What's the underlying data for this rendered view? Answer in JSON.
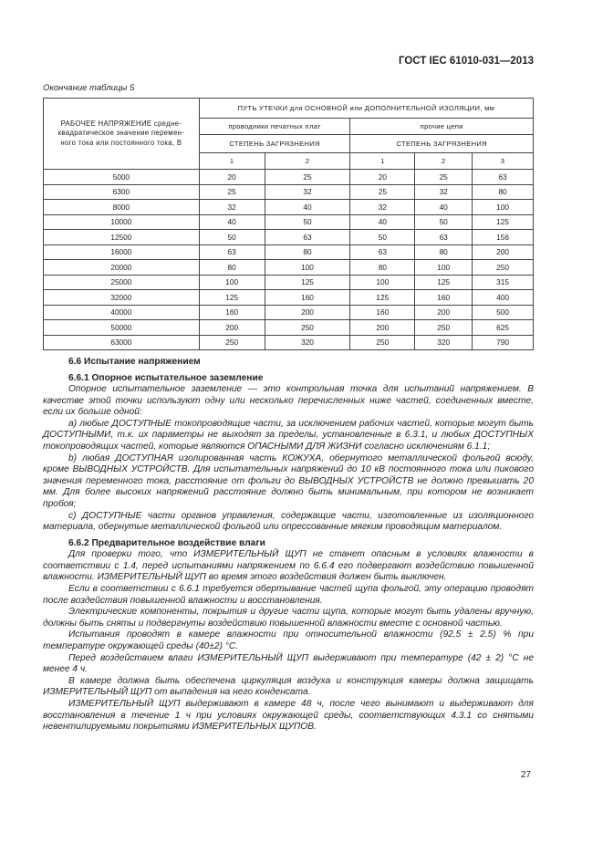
{
  "header": "ГОСТ IEC 61010-031—2013",
  "table_caption": "Окончание таблицы 5",
  "table": {
    "col0_header": "РАБОЧЕЕ НАПРЯЖЕНИЕ средне-квадратическое значение перемен-ного тока или постоянного тока, В",
    "group_header": "ПУТЬ УТЕЧКИ для ОСНОВНОЙ или ДОПОЛНИТЕЛЬНОЙ ИЗОЛЯЦИИ, мм",
    "sub1": "проводники печатных плат",
    "sub2": "прочие цепи",
    "pollution1": "СТЕПЕНЬ ЗАГРЯЗНЕНИЯ",
    "pollution2": "СТЕПЕНЬ ЗАГРЯЗНЕНИЯ",
    "degrees": [
      "1",
      "2",
      "1",
      "2",
      "3"
    ],
    "rows": [
      [
        "5000",
        "20",
        "25",
        "20",
        "25",
        "63"
      ],
      [
        "6300",
        "25",
        "32",
        "25",
        "32",
        "80"
      ],
      [
        "8000",
        "32",
        "40",
        "32",
        "40",
        "100"
      ],
      [
        "10000",
        "40",
        "50",
        "40",
        "50",
        "125"
      ],
      [
        "12500",
        "50",
        "63",
        "50",
        "63",
        "156"
      ],
      [
        "16000",
        "63",
        "80",
        "63",
        "80",
        "200"
      ],
      [
        "20000",
        "80",
        "100",
        "80",
        "100",
        "250"
      ],
      [
        "25000",
        "100",
        "125",
        "100",
        "125",
        "315"
      ],
      [
        "32000",
        "125",
        "160",
        "125",
        "160",
        "400"
      ],
      [
        "40000",
        "160",
        "200",
        "160",
        "200",
        "500"
      ],
      [
        "50000",
        "200",
        "250",
        "200",
        "250",
        "625"
      ],
      [
        "63000",
        "250",
        "320",
        "250",
        "320",
        "790"
      ]
    ]
  },
  "body": [
    {
      "t": "h",
      "text": "6.6 Испытание напряжением"
    },
    {
      "t": "h",
      "text": "6.6.1 Опорное испытательное заземление"
    },
    {
      "t": "p",
      "text": "Опорное испытательное заземление — это контрольная точка для испытаний напряжением. В качестве этой точки используют одну или несколько перечисленных ниже частей, соединенных вместе, если их больше одной:"
    },
    {
      "t": "p",
      "text": "a) любые ДОСТУПНЫЕ токопроводящие части, за исключением рабочих частей, которые могут быть ДОСТУПНЫМИ, т.к. их параметры не выходят за пределы, установленные в 6.3.1, и любых ДОСТУПНЫХ токопроводящих частей, которые являются ОПАСНЫМИ ДЛЯ ЖИЗНИ согласно исключениям 6.1.1;"
    },
    {
      "t": "p",
      "text": "b) любая ДОСТУПНАЯ изолированная часть КОЖУХА, обернутого металлической фольгой всюду, кроме ВЫВОДНЫХ УСТРОЙСТВ. Для испытательных напряжений до 10 кВ постоянного тока или пикового значения переменного тока, расстояние от фольги до ВЫВОДНЫХ УСТРОЙСТВ не должно превышать 20 мм. Для более высоких напряжений расстояние должно быть минимальным, при котором не возникает пробоя;"
    },
    {
      "t": "p",
      "text": "c) ДОСТУПНЫЕ части органов управления, содержащие части, изготовленные из изоляционного материала, обернутые металлической фольгой или опрессованные мягким проводящим материалом."
    },
    {
      "t": "h",
      "text": "6.6.2 Предварительное воздействие влаги"
    },
    {
      "t": "p",
      "text": "Для проверки того, что ИЗМЕРИТЕЛЬНЫЙ ЩУП не станет опасным в условиях влажности в соответствии с 1.4, перед испытаниями напряжением по 6.6.4 его подвергают воздействию повышенной влажности. ИЗМЕРИТЕЛЬНЫЙ ЩУП во время этого воздействия должен быть выключен."
    },
    {
      "t": "p",
      "text": "Если в соответствии с 6.6.1 требуется обертывание частей щупа фольгой, эту операцию проводят после воздействия повышенной влажности и восстановления."
    },
    {
      "t": "p",
      "text": "Электрические компоненты, покрытия и другие части щупа, которые могут быть удалены вручную, должны быть сняты и подвергнуты воздействию повышенной влажности вместе с основной частью."
    },
    {
      "t": "p",
      "text": "Испытания проводят в камере влажности при относительной влажности (92,5 ± 2,5) % при температуре окружающей среды (40±2) °C."
    },
    {
      "t": "p",
      "text": "Перед воздействием влаги ИЗМЕРИТЕЛЬНЫЙ ЩУП выдерживают при температуре (42 ± 2) °C не менее 4 ч."
    },
    {
      "t": "p",
      "text": "В камере должна быть обеспечена циркуляция воздуха и конструкция камеры должна защищать ИЗМЕРИТЕЛЬНЫЙ ЩУП от выпадения на него конденсата."
    },
    {
      "t": "p",
      "text": "ИЗМЕРИТЕЛЬНЫЙ ЩУП выдерживают в камере 48 ч, после чего вынимают и выдерживают для восстановления в течение 1 ч при условиях окружающей среды, соответствующих 4.3.1 со снятыми невентилируемыми покрытиями ИЗМЕРИТЕЛЬНЫХ ЩУПОВ."
    }
  ],
  "page_number": "27"
}
